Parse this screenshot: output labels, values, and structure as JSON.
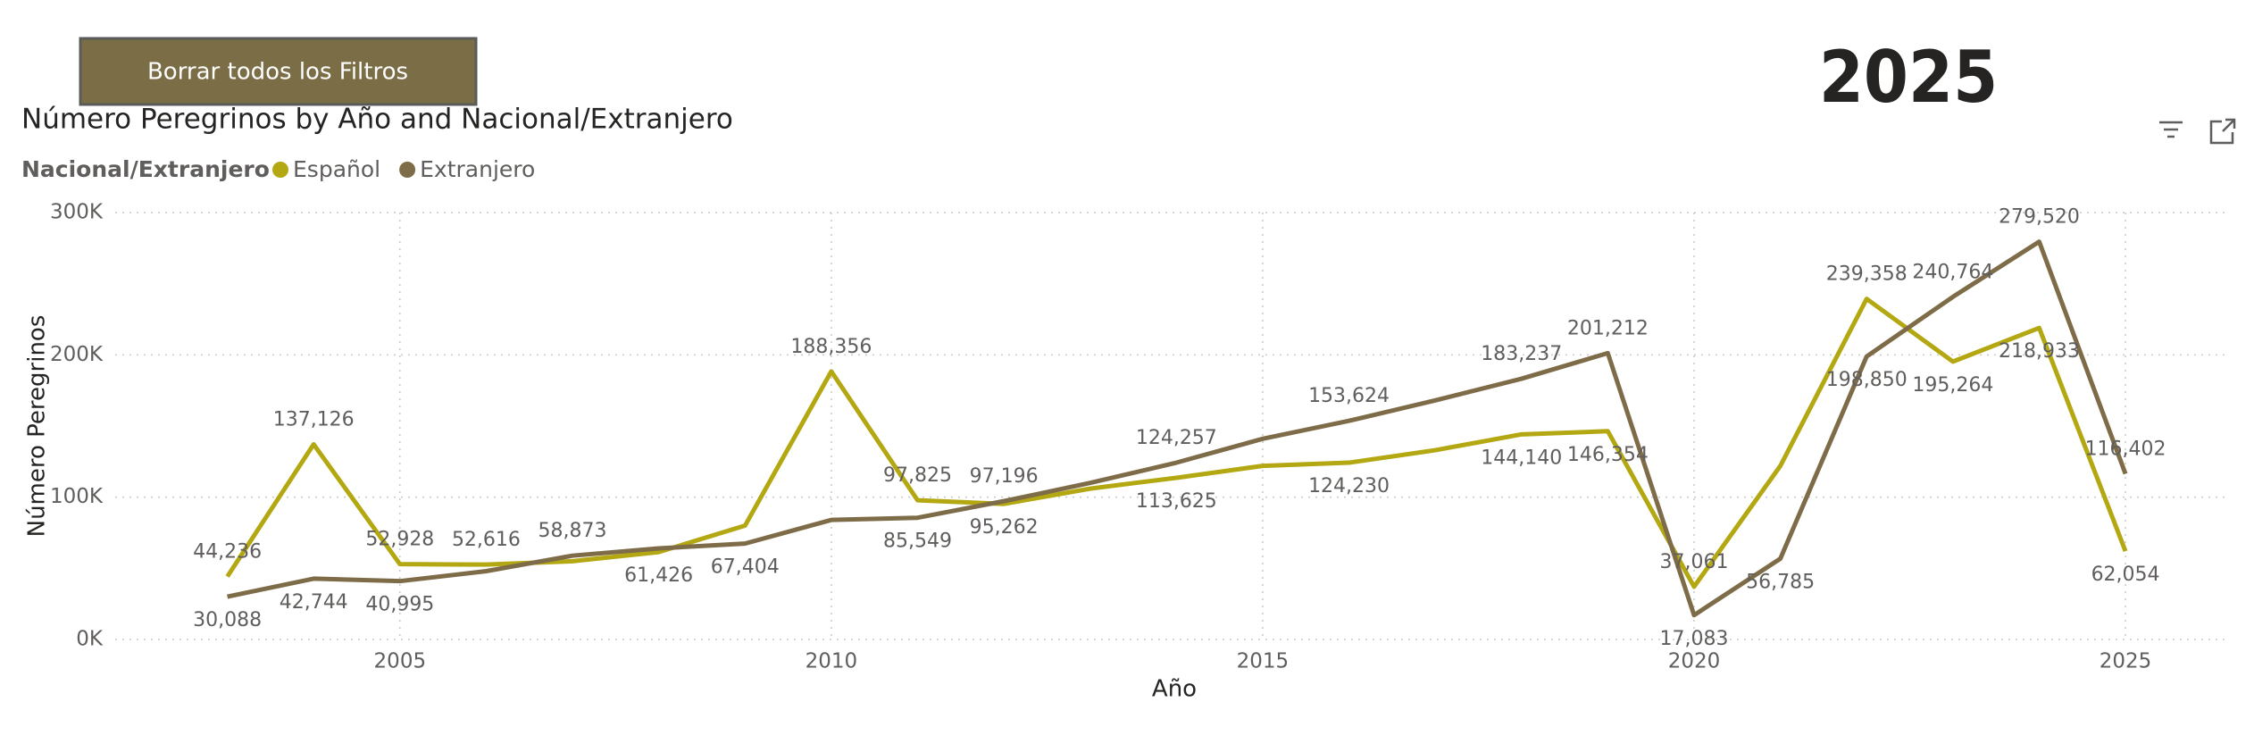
{
  "button": "Borrar todos los Filtros",
  "filter_card": "2025",
  "chart_data": {
    "type": "line",
    "title": "Número Peregrinos by Año and Nacional/Extranjero",
    "legend_title": "Nacional/Extranjero",
    "x_label": "Año",
    "y_label": "Número Peregrinos",
    "x": [
      2003,
      2004,
      2005,
      2006,
      2007,
      2008,
      2009,
      2010,
      2011,
      2012,
      2013,
      2014,
      2015,
      2016,
      2017,
      2018,
      2019,
      2020,
      2021,
      2022,
      2023,
      2024,
      2025
    ],
    "series": [
      {
        "name": "Español",
        "color": "#b3a712",
        "values": [
          44236,
          137126,
          52928,
          52616,
          55000,
          61426,
          80000,
          188356,
          97825,
          95262,
          106000,
          113625,
          122000,
          124230,
          133000,
          144140,
          146354,
          37061,
          122000,
          239358,
          195264,
          218933,
          62054
        ],
        "value_labels": [
          "44,236",
          "137,126",
          "52,928",
          "52,616",
          null,
          "61,426",
          null,
          "188,356",
          "97,825",
          "95,262",
          null,
          "113,625",
          null,
          "124,230",
          null,
          "144,140",
          "146,354",
          "37,061",
          null,
          "239,358",
          "195,264",
          "218,933",
          "62,054"
        ]
      },
      {
        "name": "Extranjero",
        "color": "#7e6c48",
        "values": [
          30088,
          42744,
          40995,
          48000,
          58873,
          64000,
          67404,
          84000,
          85549,
          97196,
          110000,
          124257,
          141000,
          153624,
          168000,
          183237,
          201212,
          17083,
          56785,
          198850,
          240764,
          279520,
          116402
        ],
        "value_labels": [
          "30,088",
          "42,744",
          "40,995",
          null,
          "58,873",
          null,
          "67,404",
          null,
          "85,549",
          "97,196",
          null,
          "124,257",
          null,
          "153,624",
          null,
          "183,237",
          "201,212",
          "17,083",
          "56,785",
          "198,850",
          "240,764",
          "279,520",
          "116,402"
        ]
      }
    ],
    "xlim": [
      2001.7,
      2026.2
    ],
    "xticks": [
      2005,
      2010,
      2015,
      2020,
      2025
    ],
    "ylim": [
      0,
      300000
    ],
    "yticks": [
      {
        "value": 0,
        "label": "0K"
      },
      {
        "value": 100000,
        "label": "100K"
      },
      {
        "value": 200000,
        "label": "200K"
      },
      {
        "value": 300000,
        "label": "300K"
      }
    ],
    "grid": true,
    "legend_position": "top-left"
  }
}
